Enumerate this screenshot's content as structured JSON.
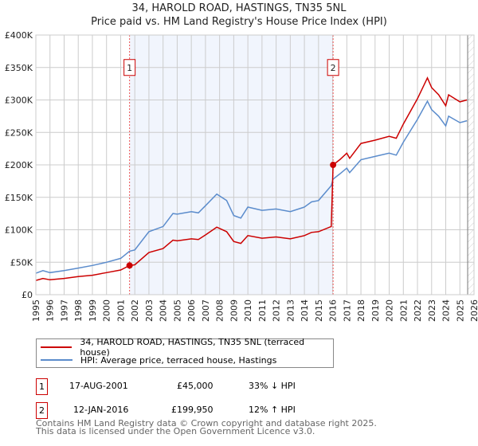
{
  "chart_data": {
    "type": "line",
    "title": "34, HAROLD ROAD, HASTINGS, TN35 5NL",
    "subtitle": "Price paid vs. HM Land Registry's House Price Index (HPI)",
    "xlim": [
      1995,
      2026
    ],
    "ylim": [
      0,
      400000
    ],
    "x_ticks": [
      "1995",
      "1996",
      "1997",
      "1998",
      "1999",
      "2000",
      "2001",
      "2002",
      "2003",
      "2004",
      "2005",
      "2006",
      "2007",
      "2008",
      "2009",
      "2010",
      "2011",
      "2012",
      "2013",
      "2014",
      "2015",
      "2016",
      "2017",
      "2018",
      "2019",
      "2020",
      "2021",
      "2022",
      "2023",
      "2024",
      "2025",
      "2026"
    ],
    "y_ticks": [
      {
        "v": 0,
        "label": "£0"
      },
      {
        "v": 50000,
        "label": "£50K"
      },
      {
        "v": 100000,
        "label": "£100K"
      },
      {
        "v": 150000,
        "label": "£150K"
      },
      {
        "v": 200000,
        "label": "£200K"
      },
      {
        "v": 250000,
        "label": "£250K"
      },
      {
        "v": 300000,
        "label": "£300K"
      },
      {
        "v": 350000,
        "label": "£350K"
      },
      {
        "v": 400000,
        "label": "£400K"
      }
    ],
    "grid": true,
    "shaded_range": [
      2001.63,
      2016.03
    ],
    "hatched_from": 2025.55,
    "series": [
      {
        "name": "34, HAROLD ROAD, HASTINGS, TN35 5NL (terraced house)",
        "color": "#cc0000",
        "x": [
          1995,
          1995.5,
          1996,
          1997,
          1998,
          1999,
          2000,
          2001,
          2001.63,
          2002,
          2003,
          2004,
          2004.7,
          2005,
          2006,
          2006.5,
          2007,
          2007.8,
          2008.5,
          2009,
          2009.5,
          2010,
          2011,
          2012,
          2013,
          2014,
          2014.5,
          2015,
          2015.9,
          2016.03,
          2016.5,
          2017,
          2017.2,
          2018,
          2019,
          2020,
          2020.5,
          2021,
          2022,
          2022.7,
          2023,
          2023.5,
          2024,
          2024.2,
          2025,
          2025.5
        ],
        "y": [
          22000,
          25000,
          23000,
          25000,
          28000,
          30000,
          34000,
          38000,
          45000,
          46000,
          65000,
          71000,
          84000,
          83000,
          86000,
          85000,
          92000,
          104000,
          97000,
          82000,
          79000,
          91000,
          87000,
          89000,
          86000,
          91000,
          96000,
          97000,
          105000,
          199950,
          208000,
          218000,
          210000,
          233000,
          238000,
          244000,
          241000,
          263000,
          302000,
          334000,
          319000,
          308000,
          291000,
          308000,
          297000,
          300000
        ]
      },
      {
        "name": "HPI: Average price, terraced house, Hastings",
        "color": "#5b8ccc",
        "x": [
          1995,
          1995.5,
          1996,
          1997,
          1998,
          1999,
          2000,
          2001,
          2001.63,
          2002,
          2003,
          2004,
          2004.7,
          2005,
          2006,
          2006.5,
          2007,
          2007.8,
          2008.5,
          2009,
          2009.5,
          2010,
          2011,
          2012,
          2013,
          2014,
          2014.5,
          2015,
          2015.9,
          2016.03,
          2016.5,
          2017,
          2017.2,
          2018,
          2019,
          2020,
          2020.5,
          2021,
          2022,
          2022.7,
          2023,
          2023.5,
          2024,
          2024.2,
          2025,
          2025.5
        ],
        "y": [
          33000,
          37000,
          34000,
          37000,
          41000,
          45000,
          50000,
          56000,
          67000,
          69000,
          97000,
          105000,
          125000,
          124000,
          128000,
          126000,
          137000,
          155000,
          145000,
          122000,
          118000,
          135000,
          130000,
          132000,
          128000,
          135000,
          143000,
          145000,
          168000,
          178000,
          186000,
          195000,
          188000,
          208000,
          213000,
          218000,
          215000,
          235000,
          270000,
          298000,
          285000,
          275000,
          260000,
          275000,
          265000,
          268000
        ]
      }
    ],
    "annotations": [
      {
        "label": "1",
        "x": 2001.63,
        "y": 45000
      },
      {
        "label": "2",
        "x": 2016.03,
        "y": 199950
      }
    ]
  },
  "legend": [
    {
      "label": "34, HAROLD ROAD, HASTINGS, TN35 5NL (terraced house)",
      "color": "#cc0000"
    },
    {
      "label": "HPI: Average price, terraced house, Hastings",
      "color": "#5b8ccc"
    }
  ],
  "transactions": [
    {
      "num": "1",
      "date": "17-AUG-2001",
      "price": "£45,000",
      "hpi": "33% ↓ HPI"
    },
    {
      "num": "2",
      "date": "12-JAN-2016",
      "price": "£199,950",
      "hpi": "12% ↑ HPI"
    }
  ],
  "footer": {
    "line1": "Contains HM Land Registry data © Crown copyright and database right 2025.",
    "line2": "This data is licensed under the Open Government Licence v3.0."
  }
}
